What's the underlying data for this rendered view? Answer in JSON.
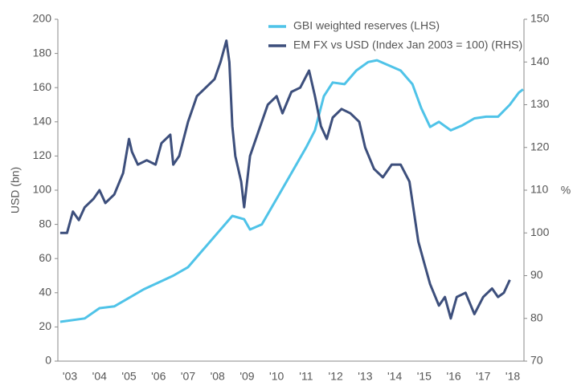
{
  "chart_data": {
    "type": "line",
    "ylabel": "USD (bn)",
    "y2label": "%",
    "xlim": [
      2002.59,
      2018.38
    ],
    "xticks": [
      {
        "value": 2003,
        "label": "'03"
      },
      {
        "value": 2004,
        "label": "'04"
      },
      {
        "value": 2005,
        "label": "'05"
      },
      {
        "value": 2006,
        "label": "'06"
      },
      {
        "value": 2007,
        "label": "'07"
      },
      {
        "value": 2008,
        "label": "'08"
      },
      {
        "value": 2009,
        "label": "'09"
      },
      {
        "value": 2010,
        "label": "'10"
      },
      {
        "value": 2011,
        "label": "'11"
      },
      {
        "value": 2012,
        "label": "'12"
      },
      {
        "value": 2013,
        "label": "'13"
      },
      {
        "value": 2014,
        "label": "'14"
      },
      {
        "value": 2015,
        "label": "'15"
      },
      {
        "value": 2016,
        "label": "'16"
      },
      {
        "value": 2017,
        "label": "'17"
      },
      {
        "value": 2018,
        "label": "'18"
      }
    ],
    "ylim": [
      0,
      200
    ],
    "yticks": [
      0,
      20,
      40,
      60,
      80,
      100,
      120,
      140,
      160,
      180,
      200
    ],
    "y2lim": [
      70,
      150
    ],
    "y2ticks": [
      70,
      80,
      90,
      100,
      110,
      120,
      130,
      140,
      150
    ],
    "series": [
      {
        "name": "GBI weighted reserves (LHS)",
        "color": "#4fc3e8",
        "x": [
          2002.67,
          2003.5,
          2004,
          2004.5,
          2005,
          2005.5,
          2006,
          2006.5,
          2007,
          2007.5,
          2008,
          2008.5,
          2008.9,
          2009.1,
          2009.5,
          2010,
          2010.5,
          2011,
          2011.3,
          2011.6,
          2011.9,
          2012.3,
          2012.7,
          2013.1,
          2013.4,
          2013.8,
          2014.2,
          2014.6,
          2014.9,
          2015.2,
          2015.5,
          2015.9,
          2016.3,
          2016.7,
          2017.1,
          2017.5,
          2017.9,
          2018.2,
          2018.35
        ],
        "values": [
          23,
          25,
          31,
          32,
          37,
          42,
          46,
          50,
          55,
          65,
          75,
          85,
          83,
          77,
          80,
          95,
          110,
          125,
          135,
          155,
          163,
          162,
          170,
          175,
          176,
          173,
          170,
          162,
          148,
          137,
          140,
          135,
          138,
          142,
          143,
          143,
          150,
          157,
          159
        ]
      },
      {
        "name": "EM FX vs USD (Index Jan 2003 = 100) (RHS)",
        "color": "#3d4f7c",
        "axis": "y2",
        "x": [
          2002.67,
          2002.9,
          2003.1,
          2003.3,
          2003.5,
          2003.8,
          2004.0,
          2004.2,
          2004.5,
          2004.8,
          2005,
          2005.1,
          2005.3,
          2005.6,
          2005.9,
          2006.1,
          2006.4,
          2006.5,
          2006.7,
          2007,
          2007.3,
          2007.6,
          2007.9,
          2008.1,
          2008.3,
          2008.4,
          2008.5,
          2008.6,
          2008.8,
          2008.9,
          2009.1,
          2009.4,
          2009.7,
          2010,
          2010.2,
          2010.5,
          2010.8,
          2011.1,
          2011.3,
          2011.5,
          2011.7,
          2011.9,
          2012.2,
          2012.5,
          2012.8,
          2013.0,
          2013.3,
          2013.6,
          2013.9,
          2014.2,
          2014.5,
          2014.8,
          2015.0,
          2015.2,
          2015.5,
          2015.7,
          2015.9,
          2016.1,
          2016.4,
          2016.7,
          2017.0,
          2017.3,
          2017.5,
          2017.7,
          2017.9
        ],
        "values": [
          100,
          100,
          105,
          103,
          106,
          108,
          110,
          107,
          109,
          114,
          122,
          119,
          116,
          117,
          116,
          121,
          123,
          116,
          118,
          126,
          132,
          134,
          136,
          140,
          145,
          140,
          125,
          118,
          112,
          106,
          118,
          124,
          130,
          132,
          128,
          133,
          134,
          138,
          132,
          125,
          122,
          127,
          129,
          128,
          126,
          120,
          115,
          113,
          116,
          116,
          112,
          98,
          93,
          88,
          83,
          85,
          80,
          85,
          86,
          81,
          85,
          87,
          85,
          86,
          89
        ]
      }
    ]
  }
}
